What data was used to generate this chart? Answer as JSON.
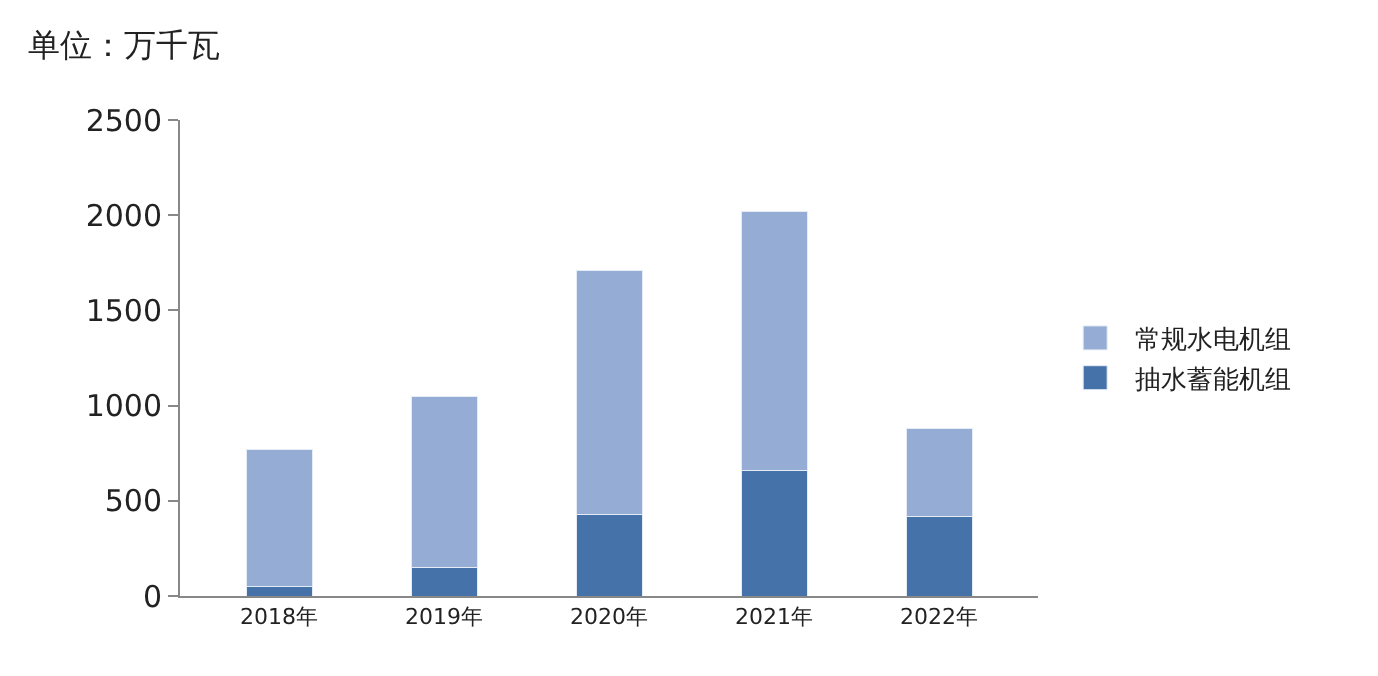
{
  "chart_data": {
    "type": "bar",
    "title": "单位：万千瓦",
    "categories": [
      "2018年",
      "2019年",
      "2020年",
      "2021年",
      "2022年"
    ],
    "series": [
      {
        "name": "抽水蓄能机组",
        "color": "#4672aa",
        "values": [
          50,
          150,
          430,
          660,
          420
        ]
      },
      {
        "name": "常规水电机组",
        "color": "#95add4",
        "values": [
          720,
          900,
          1280,
          1360,
          460
        ]
      }
    ],
    "stacked": true,
    "ylim": [
      0,
      2500
    ],
    "yticks": [
      0,
      500,
      1000,
      1500,
      2000,
      2500
    ],
    "legend": "right"
  }
}
